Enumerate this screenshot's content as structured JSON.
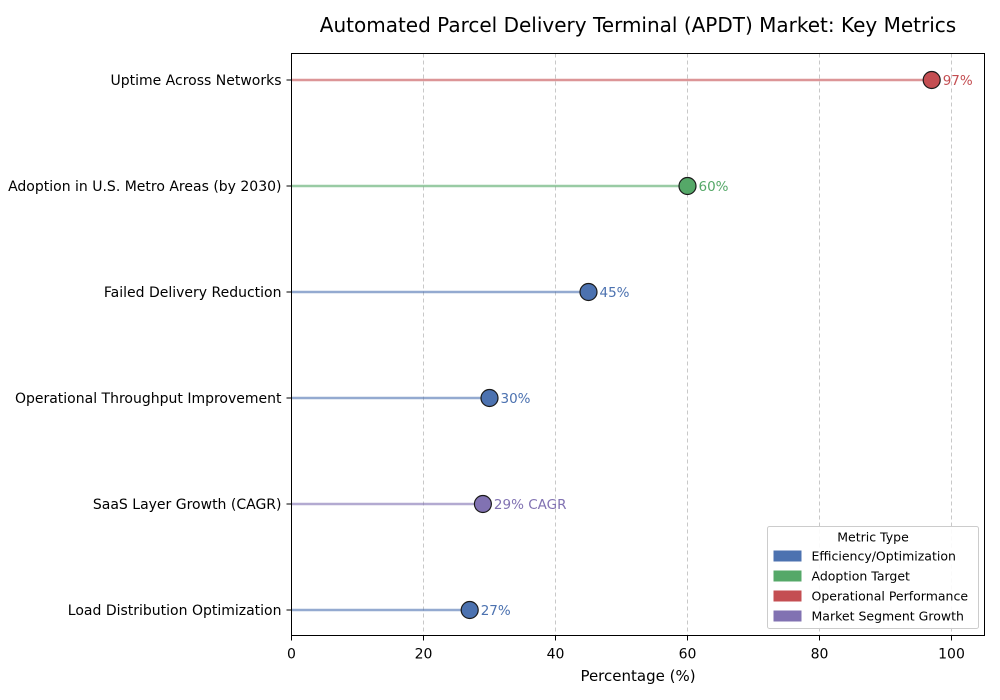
{
  "chart_data": {
    "type": "lollipop",
    "title": "Automated Parcel Delivery Terminal (APDT) Market: Key Metrics",
    "xlabel": "Percentage (%)",
    "ylabel": "",
    "xlim": [
      0,
      105
    ],
    "xticks": [
      0,
      20,
      40,
      60,
      80,
      100
    ],
    "grid": "x-dashed",
    "legend": {
      "title": "Metric Type",
      "placement": "lower-right",
      "entries": [
        {
          "name": "Efficiency/Optimization",
          "color": "#4C72B0"
        },
        {
          "name": "Adoption Target",
          "color": "#55A868"
        },
        {
          "name": "Operational Performance",
          "color": "#C44E52"
        },
        {
          "name": "Market Segment Growth",
          "color": "#8172B2"
        }
      ]
    },
    "items": [
      {
        "category": "Uptime Across Networks",
        "value": 97,
        "label": "97%",
        "type": "Operational Performance"
      },
      {
        "category": "Adoption in U.S. Metro Areas (by 2030)",
        "value": 60,
        "label": "60%",
        "type": "Adoption Target"
      },
      {
        "category": "Failed Delivery Reduction",
        "value": 45,
        "label": "45%",
        "type": "Efficiency/Optimization"
      },
      {
        "category": "Operational Throughput Improvement",
        "value": 30,
        "label": "30%",
        "type": "Efficiency/Optimization"
      },
      {
        "category": "SaaS Layer Growth (CAGR)",
        "value": 29,
        "label": "29% CAGR",
        "type": "Market Segment Growth"
      },
      {
        "category": "Load Distribution Optimization",
        "value": 27,
        "label": "27%",
        "type": "Efficiency/Optimization"
      }
    ]
  }
}
